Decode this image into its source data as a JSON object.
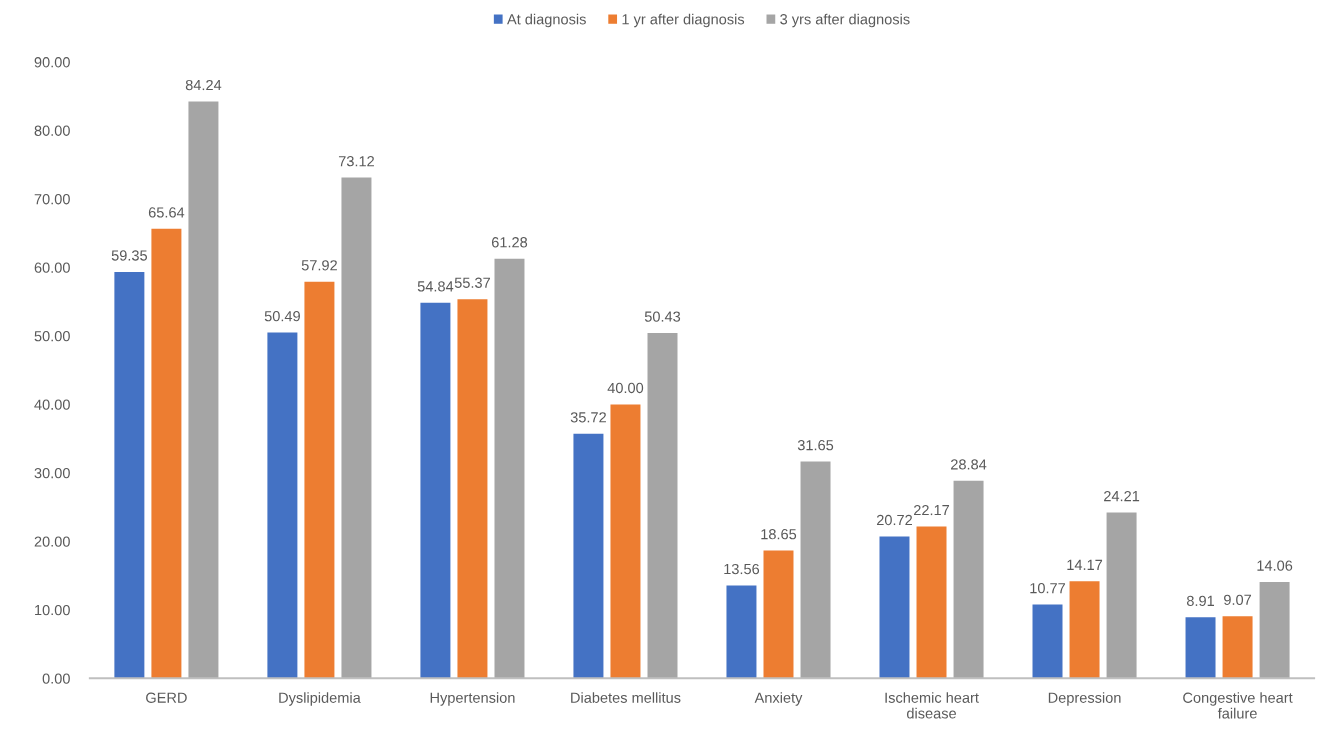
{
  "chart_data": {
    "type": "bar",
    "categories": [
      "GERD",
      "Dyslipidemia",
      "Hypertension",
      "Diabetes mellitus",
      "Anxiety",
      "Ischemic heart\ndisease",
      "Depression",
      "Congestive heart\nfailure"
    ],
    "series": [
      {
        "name": "At diagnosis",
        "color": "#4472c4",
        "values": [
          59.35,
          50.49,
          54.84,
          35.72,
          13.56,
          20.72,
          10.77,
          8.91
        ],
        "value_labels": [
          "59.35",
          "50.49",
          "54.84",
          "35.72",
          "13.56",
          "20.72",
          "10.77",
          "8.91"
        ]
      },
      {
        "name": "1 yr after diagnosis",
        "color": "#ed7d31",
        "values": [
          65.64,
          57.92,
          55.37,
          40.0,
          18.65,
          22.17,
          14.17,
          9.07
        ],
        "value_labels": [
          "65.64",
          "57.92",
          "55.37",
          "40.00",
          "18.65",
          "22.17",
          "14.17",
          "9.07"
        ]
      },
      {
        "name": "3 yrs after diagnosis",
        "color": "#a5a5a5",
        "values": [
          84.24,
          73.12,
          61.28,
          50.43,
          31.65,
          28.84,
          24.21,
          14.06
        ],
        "value_labels": [
          "84.24",
          "73.12",
          "61.28",
          "50.43",
          "31.65",
          "28.84",
          "24.21",
          "14.06"
        ]
      }
    ],
    "ylim": [
      0,
      90
    ],
    "yticks": [
      {
        "value": 0,
        "label": "0.00"
      },
      {
        "value": 10,
        "label": "10.00"
      },
      {
        "value": 20,
        "label": "20.00"
      },
      {
        "value": 30,
        "label": "30.00"
      },
      {
        "value": 40,
        "label": "40.00"
      },
      {
        "value": 50,
        "label": "50.00"
      },
      {
        "value": 60,
        "label": "60.00"
      },
      {
        "value": 70,
        "label": "70.00"
      },
      {
        "value": 80,
        "label": "80.00"
      },
      {
        "value": 90,
        "label": "90.00"
      }
    ],
    "grid": false,
    "legend": "top"
  }
}
